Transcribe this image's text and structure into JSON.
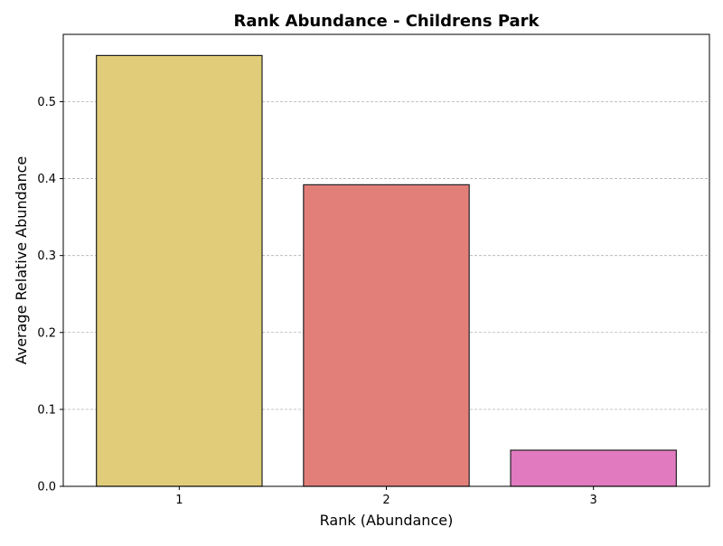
{
  "chart_data": {
    "type": "bar",
    "title": "Rank Abundance - Childrens Park",
    "xlabel": "Rank (Abundance)",
    "ylabel": "Average Relative Abundance",
    "categories": [
      "1",
      "2",
      "3"
    ],
    "values": [
      0.56,
      0.392,
      0.047
    ],
    "colors": [
      "#e1cc79",
      "#e27f79",
      "#e27ac0"
    ],
    "ylim": [
      0,
      0.5875
    ],
    "yticks": [
      0.0,
      0.1,
      0.2,
      0.3,
      0.4,
      0.5
    ],
    "ytick_labels": [
      "0.0",
      "0.1",
      "0.2",
      "0.3",
      "0.4",
      "0.5"
    ],
    "grid": "y-axis dashed",
    "legend": "none"
  }
}
